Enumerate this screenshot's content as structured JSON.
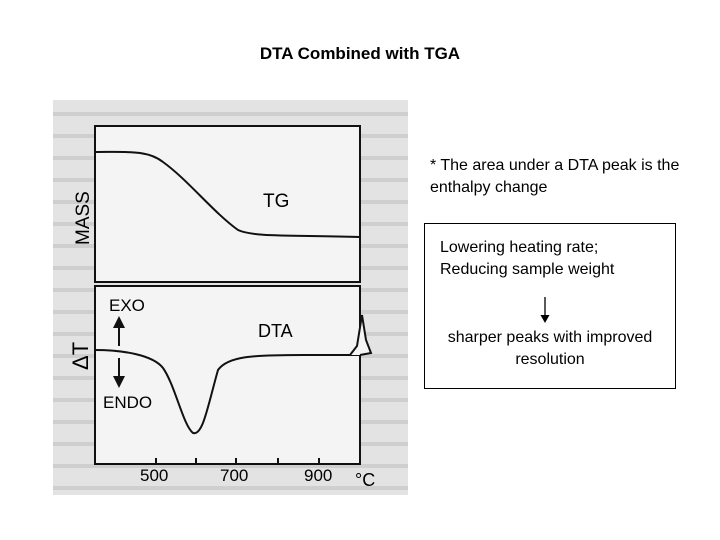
{
  "slide": {
    "title": "DTA Combined with TGA"
  },
  "figure": {
    "tg_axis_label": "MASS",
    "tg_curve_label": "TG",
    "dta_axis_label": "ΔT",
    "exo_label": "EXO",
    "endo_label": "ENDO",
    "dta_curve_label": "DTA",
    "x_ticks": [
      "500",
      "700",
      "900"
    ],
    "x_unit": "°C"
  },
  "note": {
    "text": "* The area under a DTA peak is the enthalpy change"
  },
  "box": {
    "line1": "Lowering heating rate;",
    "line2": "Reducing sample weight",
    "result_line1": "sharper peaks with improved",
    "result_line2": "resolution"
  }
}
